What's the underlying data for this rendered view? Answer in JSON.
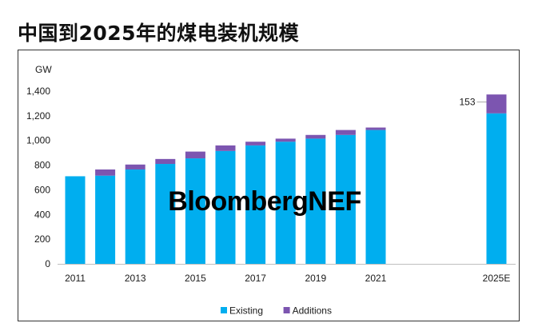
{
  "title": "中国到2025年的煤电装机规模",
  "watermark": "BloombergNEF",
  "chart_data": {
    "type": "bar",
    "stacked": true,
    "ylabel": "GW",
    "ylim": [
      0,
      1400
    ],
    "yticks": [
      "0",
      "200",
      "400",
      "600",
      "800",
      "1,000",
      "1,200",
      "1,400"
    ],
    "categories": [
      "2011",
      "2012",
      "2013",
      "2014",
      "2015",
      "2016",
      "2017",
      "2018",
      "2019",
      "2020",
      "2021",
      "2025E"
    ],
    "xtick_labels": [
      "2011",
      "",
      "2013",
      "",
      "2015",
      "",
      "2017",
      "",
      "2019",
      "",
      "2021",
      "2025E"
    ],
    "series": [
      {
        "name": "Existing",
        "color": "#00AEEF",
        "values": [
          710,
          715,
          765,
          810,
          855,
          915,
          960,
          990,
          1015,
          1045,
          1085,
          1220
        ]
      },
      {
        "name": "Additions",
        "color": "#7C55B0",
        "values": [
          0,
          50,
          40,
          40,
          55,
          45,
          30,
          25,
          30,
          40,
          20,
          153
        ]
      }
    ],
    "annotations": [
      {
        "text": "153",
        "category": "2025E"
      }
    ],
    "legend": {
      "position": "bottom",
      "items": [
        "Existing",
        "Additions"
      ]
    },
    "grid": false
  }
}
